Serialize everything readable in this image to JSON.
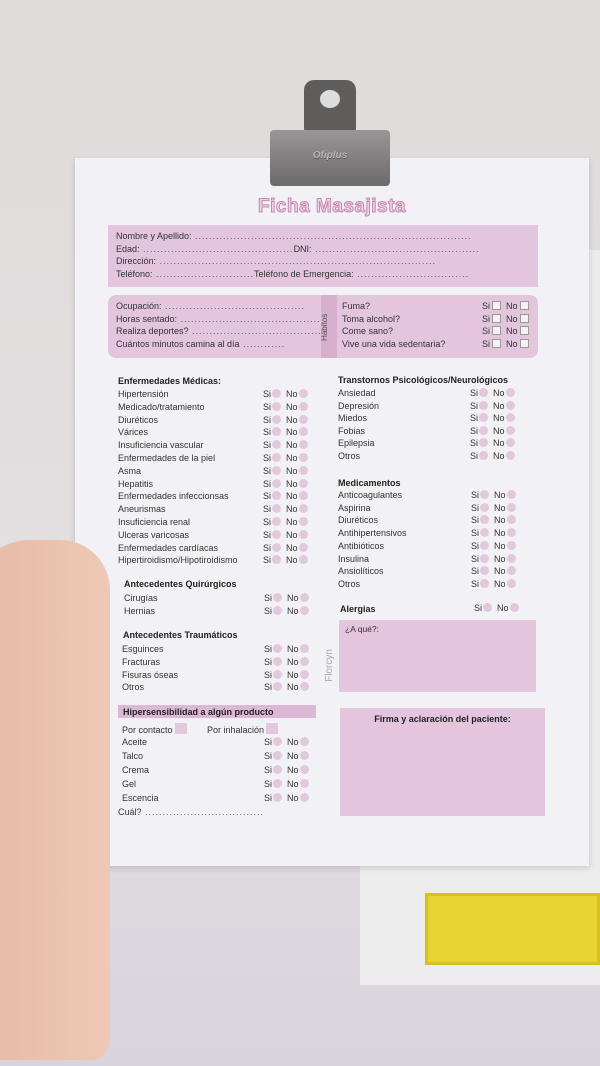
{
  "title": "Ficha Masajista",
  "clip_brand": "Ofiplus",
  "personal": {
    "nombre": "Nombre y Apellido:",
    "edad": "Edad:",
    "dni": "DNI:",
    "direccion": "Dirección:",
    "telefono": "Teléfono:",
    "telefono_emergencia": "Teléfono de Emergencia:"
  },
  "occupation": {
    "ocupacion": "Ocupación:",
    "horas": "Horas sentado:",
    "deportes": "Realiza deportes?",
    "minutos": "Cuántos minutos camina al día"
  },
  "habits": {
    "label": "Hábitos",
    "items": [
      "Fuma?",
      "Toma alcohol?",
      "Come sano?",
      "Vive una vida sedentaria?"
    ]
  },
  "yes": "Si",
  "no": "No",
  "medical": {
    "heading": "Enfermedades Médicas:",
    "items": [
      "Hipertensión",
      "Medicado/tratamiento",
      "Diuréticos",
      "Várices",
      "Insuficiencia vascular",
      "Enfermedades de la piel",
      "Asma",
      "Hepatitis",
      "Enfermedades infeccionsas",
      "Aneurismas",
      "Insuficiencia renal",
      "Ulceras varicosas",
      "Enfermedades cardíacas",
      "Hipertiroidismo/Hipotiroidismo"
    ]
  },
  "surgical": {
    "heading": "Antecedentes Quirúrgicos",
    "items": [
      "Cirugías",
      "Hernias"
    ]
  },
  "trauma": {
    "heading": "Antecedentes Traumáticos",
    "items": [
      "Esguinces",
      "Fracturas",
      "Fisuras óseas",
      "Otros"
    ]
  },
  "hyper": {
    "heading": "Hipersensibilidad a algún producto",
    "contact": "Por contacto",
    "inhalation": "Por inhalación",
    "items": [
      "Aceite",
      "Talco",
      "Crema",
      "Gel",
      "Escencia"
    ],
    "which": "Cuál?"
  },
  "psych": {
    "heading": "Transtornos Psicológicos/Neurológicos",
    "items": [
      "Ansiedad",
      "Depresión",
      "Miedos",
      "Fobias",
      "Epilepsia",
      "Otros"
    ]
  },
  "meds": {
    "heading": "Medicamentos",
    "items": [
      "Anticoagulantes",
      "Aspirina",
      "Diuréticos",
      "Antihipertensivos",
      "Antibióticos",
      "Insulina",
      "Ansiolíticos",
      "Otros"
    ]
  },
  "allergies": {
    "heading": "Alergias",
    "what": "¿A qué?:"
  },
  "signature": "Firma y aclaración del paciente:",
  "watermark": "Florcyn",
  "colors": {
    "pink": "#e3c6dd",
    "title": "#c887b1"
  }
}
